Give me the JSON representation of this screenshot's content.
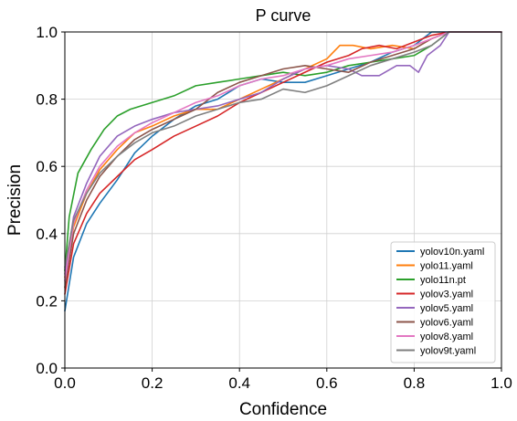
{
  "chart_data": {
    "type": "line",
    "title": "P curve",
    "xlabel": "Confidence",
    "ylabel": "Precision",
    "xlim": [
      0.0,
      1.0
    ],
    "ylim": [
      0.0,
      1.0
    ],
    "xticks": [
      "0.0",
      "0.2",
      "0.4",
      "0.6",
      "0.8",
      "1.0"
    ],
    "yticks": [
      "0.0",
      "0.2",
      "0.4",
      "0.6",
      "0.8",
      "1.0"
    ],
    "grid": true,
    "legend_position": "bottom-right",
    "series": [
      {
        "name": "yolov10n.yaml",
        "color": "#1f77b4",
        "x": [
          0.0,
          0.02,
          0.05,
          0.08,
          0.12,
          0.16,
          0.2,
          0.25,
          0.3,
          0.35,
          0.4,
          0.45,
          0.5,
          0.55,
          0.6,
          0.65,
          0.7,
          0.75,
          0.8,
          0.84,
          0.88,
          1.0
        ],
        "y": [
          0.17,
          0.33,
          0.43,
          0.49,
          0.56,
          0.64,
          0.69,
          0.74,
          0.78,
          0.8,
          0.84,
          0.86,
          0.85,
          0.85,
          0.87,
          0.89,
          0.91,
          0.94,
          0.96,
          1.0,
          1.0,
          1.0
        ]
      },
      {
        "name": "yolo11.yaml",
        "color": "#ff7f0e",
        "x": [
          0.0,
          0.02,
          0.05,
          0.08,
          0.12,
          0.16,
          0.2,
          0.25,
          0.3,
          0.35,
          0.4,
          0.45,
          0.5,
          0.55,
          0.6,
          0.63,
          0.66,
          0.7,
          0.75,
          0.8,
          0.84,
          0.88,
          1.0
        ],
        "y": [
          0.27,
          0.42,
          0.52,
          0.59,
          0.65,
          0.7,
          0.72,
          0.75,
          0.77,
          0.77,
          0.8,
          0.83,
          0.86,
          0.89,
          0.92,
          0.96,
          0.96,
          0.95,
          0.96,
          0.95,
          0.98,
          1.0,
          1.0
        ]
      },
      {
        "name": "yolo11n.pt",
        "color": "#2ca02c",
        "x": [
          0.0,
          0.01,
          0.03,
          0.06,
          0.09,
          0.12,
          0.15,
          0.2,
          0.25,
          0.3,
          0.35,
          0.4,
          0.45,
          0.5,
          0.55,
          0.6,
          0.65,
          0.7,
          0.75,
          0.8,
          0.84,
          0.88,
          1.0
        ],
        "y": [
          0.29,
          0.45,
          0.58,
          0.65,
          0.71,
          0.75,
          0.77,
          0.79,
          0.81,
          0.84,
          0.85,
          0.86,
          0.87,
          0.88,
          0.87,
          0.88,
          0.9,
          0.91,
          0.92,
          0.93,
          0.96,
          1.0,
          1.0
        ]
      },
      {
        "name": "yolov3.yaml",
        "color": "#d62728",
        "x": [
          0.0,
          0.02,
          0.05,
          0.08,
          0.12,
          0.16,
          0.2,
          0.25,
          0.3,
          0.35,
          0.4,
          0.45,
          0.5,
          0.55,
          0.6,
          0.65,
          0.68,
          0.72,
          0.76,
          0.8,
          0.84,
          0.88,
          1.0
        ],
        "y": [
          0.22,
          0.37,
          0.46,
          0.52,
          0.57,
          0.62,
          0.65,
          0.69,
          0.72,
          0.75,
          0.79,
          0.82,
          0.85,
          0.88,
          0.91,
          0.93,
          0.95,
          0.96,
          0.95,
          0.97,
          0.99,
          1.0,
          1.0
        ]
      },
      {
        "name": "yolov5.yaml",
        "color": "#9467bd",
        "x": [
          0.0,
          0.02,
          0.05,
          0.08,
          0.12,
          0.16,
          0.2,
          0.25,
          0.3,
          0.35,
          0.4,
          0.45,
          0.5,
          0.55,
          0.6,
          0.65,
          0.68,
          0.72,
          0.76,
          0.79,
          0.81,
          0.83,
          0.86,
          0.88,
          1.0
        ],
        "y": [
          0.28,
          0.45,
          0.55,
          0.63,
          0.69,
          0.72,
          0.74,
          0.76,
          0.77,
          0.78,
          0.8,
          0.82,
          0.86,
          0.89,
          0.9,
          0.89,
          0.87,
          0.87,
          0.9,
          0.9,
          0.88,
          0.93,
          0.96,
          1.0,
          1.0
        ]
      },
      {
        "name": "yolov6.yaml",
        "color": "#8c564b",
        "x": [
          0.0,
          0.02,
          0.05,
          0.08,
          0.12,
          0.16,
          0.2,
          0.25,
          0.3,
          0.35,
          0.4,
          0.45,
          0.5,
          0.55,
          0.6,
          0.65,
          0.7,
          0.75,
          0.8,
          0.84,
          0.88,
          1.0
        ],
        "y": [
          0.24,
          0.4,
          0.5,
          0.57,
          0.63,
          0.68,
          0.71,
          0.74,
          0.77,
          0.82,
          0.85,
          0.87,
          0.89,
          0.9,
          0.89,
          0.88,
          0.91,
          0.93,
          0.95,
          0.98,
          1.0,
          1.0
        ]
      },
      {
        "name": "yolov8.yaml",
        "color": "#e377c2",
        "x": [
          0.0,
          0.02,
          0.05,
          0.08,
          0.12,
          0.16,
          0.2,
          0.25,
          0.3,
          0.35,
          0.4,
          0.45,
          0.5,
          0.55,
          0.6,
          0.65,
          0.7,
          0.75,
          0.8,
          0.84,
          0.88,
          1.0
        ],
        "y": [
          0.26,
          0.43,
          0.53,
          0.6,
          0.66,
          0.7,
          0.73,
          0.76,
          0.79,
          0.81,
          0.84,
          0.86,
          0.87,
          0.89,
          0.9,
          0.92,
          0.93,
          0.94,
          0.96,
          0.98,
          1.0,
          1.0
        ]
      },
      {
        "name": "yolov9t.yaml",
        "color": "#7f7f7f",
        "x": [
          0.0,
          0.02,
          0.05,
          0.08,
          0.12,
          0.16,
          0.2,
          0.25,
          0.3,
          0.35,
          0.4,
          0.45,
          0.5,
          0.55,
          0.6,
          0.65,
          0.7,
          0.75,
          0.8,
          0.84,
          0.88,
          1.0
        ],
        "y": [
          0.3,
          0.44,
          0.52,
          0.58,
          0.63,
          0.67,
          0.7,
          0.72,
          0.75,
          0.77,
          0.79,
          0.8,
          0.83,
          0.82,
          0.84,
          0.87,
          0.9,
          0.92,
          0.94,
          0.96,
          1.0,
          1.0
        ]
      }
    ]
  }
}
